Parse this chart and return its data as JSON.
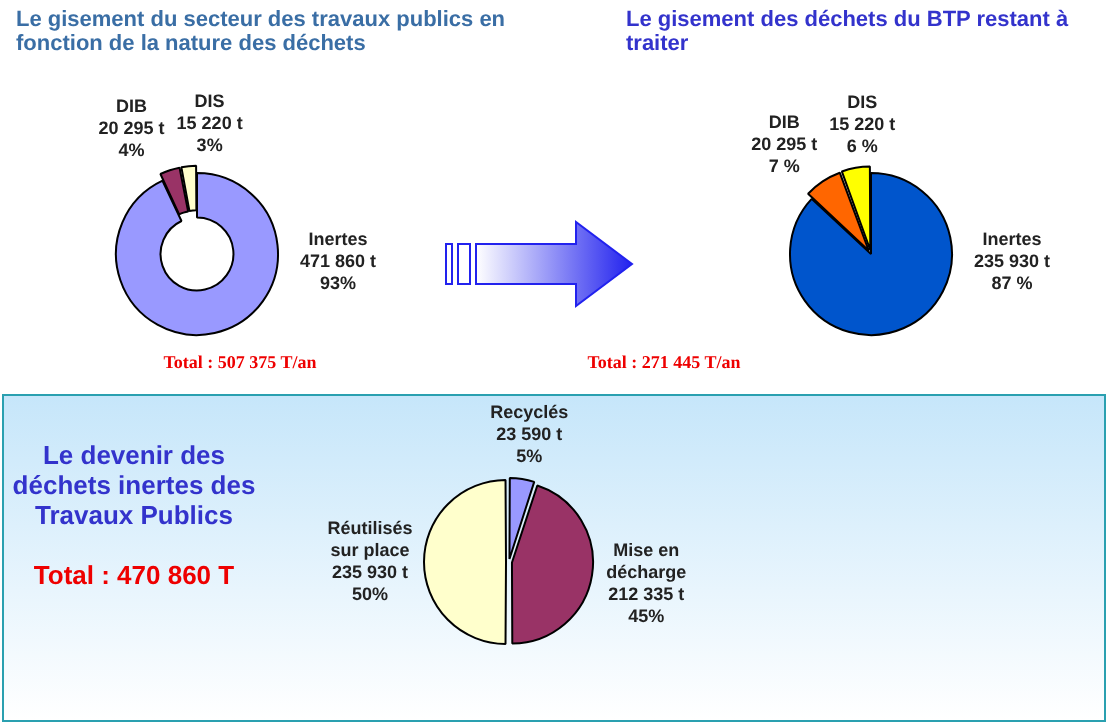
{
  "chart_data": [
    {
      "type": "donut",
      "title": "Le gisement du secteur des travaux publics en fonction de la nature des déchets",
      "categories": [
        "Inertes",
        "DIB",
        "DIS"
      ],
      "values": [
        471860,
        20295,
        15220
      ],
      "colors": [
        "#9999ff",
        "#993366",
        "#ffffcc"
      ],
      "value_labels": [
        "471 860 t\n93%",
        "20 295 t\n4%",
        "15 220 t\n3%"
      ],
      "annotations": [
        "Total : 507 375 T/an"
      ]
    },
    {
      "type": "pie",
      "title": "Le gisement des déchets du BTP restant à traiter",
      "categories": [
        "Inertes",
        "DIB",
        "DIS"
      ],
      "values": [
        235930,
        20295,
        15220
      ],
      "colors": [
        "#0055cc",
        "#ff6600",
        "#ffff00"
      ],
      "value_labels": [
        "235 930 t\n87 %",
        "20 295 t\n7 %",
        "15 220 t\n6 %"
      ],
      "annotations": [
        "Total : 271 445 T/an"
      ]
    },
    {
      "type": "pie",
      "title": "Le devenir des déchets inertes des Travaux Publics",
      "categories": [
        "Recyclés",
        "Mise en décharge",
        "Réutilisés sur place"
      ],
      "values": [
        23590,
        212335,
        235930
      ],
      "colors": [
        "#9999ff",
        "#993366",
        "#ffffcc"
      ],
      "value_labels": [
        "23 590 t\n5%",
        "212 335 t\n45%",
        "235 930 t\n50%"
      ],
      "annotations": [
        "Total : 470 860 T"
      ]
    }
  ]
}
